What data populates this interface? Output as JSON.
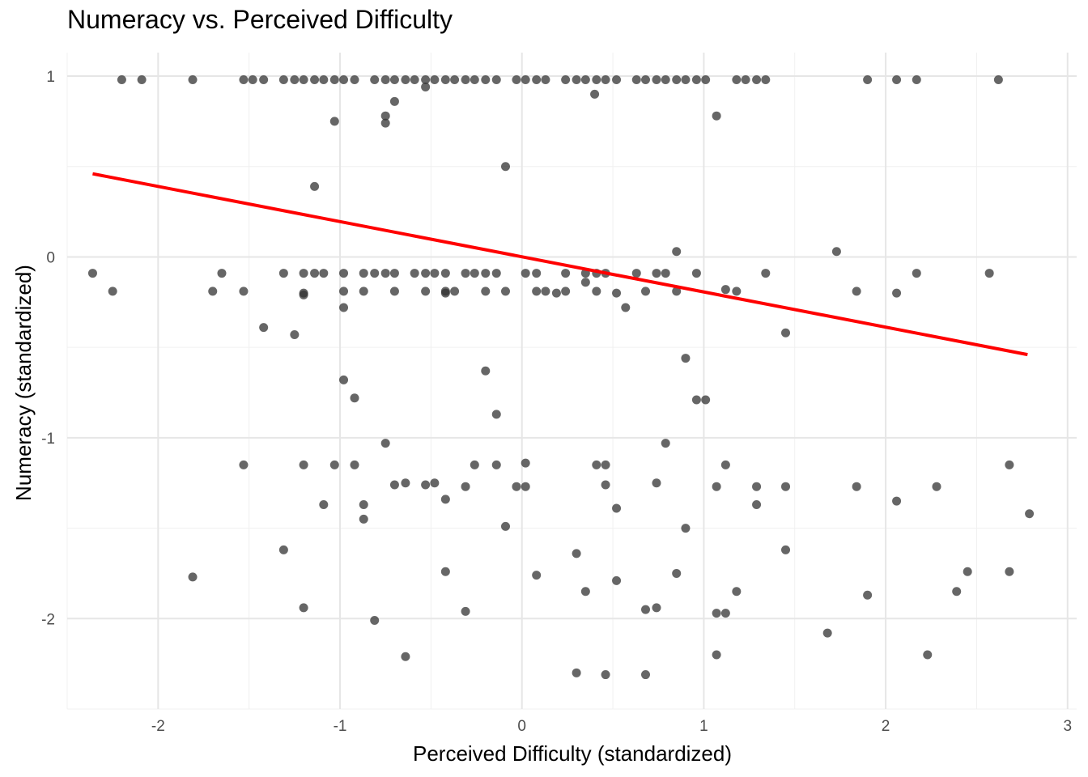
{
  "chart_data": {
    "type": "scatter",
    "title": "Numeracy vs. Perceived Difficulty",
    "xlabel": "Perceived Difficulty (standardized)",
    "ylabel": "Numeracy (standardized)",
    "xlim": [
      -2.5,
      3.05
    ],
    "ylim": [
      -2.5,
      1.13
    ],
    "x_ticks": [
      -2,
      -1,
      0,
      1,
      2,
      3
    ],
    "y_ticks": [
      -2,
      -1,
      0,
      1
    ],
    "grid": true,
    "point_color": "#333333",
    "fit_line": {
      "color": "#ff0000",
      "x": [
        -2.36,
        2.78
      ],
      "y": [
        0.46,
        -0.54
      ]
    },
    "points": [
      {
        "x": -2.2,
        "y": 0.98
      },
      {
        "x": -2.09,
        "y": 0.98
      },
      {
        "x": -1.81,
        "y": 0.98
      },
      {
        "x": -1.53,
        "y": 0.98
      },
      {
        "x": -1.48,
        "y": 0.98
      },
      {
        "x": -1.42,
        "y": 0.98
      },
      {
        "x": -1.31,
        "y": 0.98
      },
      {
        "x": -1.25,
        "y": 0.98
      },
      {
        "x": -1.2,
        "y": 0.98
      },
      {
        "x": -1.14,
        "y": 0.98
      },
      {
        "x": -1.09,
        "y": 0.98
      },
      {
        "x": -1.03,
        "y": 0.98
      },
      {
        "x": -0.98,
        "y": 0.98
      },
      {
        "x": -0.92,
        "y": 0.98
      },
      {
        "x": -0.81,
        "y": 0.98
      },
      {
        "x": -0.75,
        "y": 0.98
      },
      {
        "x": -0.7,
        "y": 0.98
      },
      {
        "x": -0.64,
        "y": 0.98
      },
      {
        "x": -0.59,
        "y": 0.98
      },
      {
        "x": -0.53,
        "y": 0.98
      },
      {
        "x": -0.48,
        "y": 0.98
      },
      {
        "x": -0.42,
        "y": 0.98
      },
      {
        "x": -0.37,
        "y": 0.98
      },
      {
        "x": -0.31,
        "y": 0.98
      },
      {
        "x": -0.26,
        "y": 0.98
      },
      {
        "x": -0.2,
        "y": 0.98
      },
      {
        "x": -0.14,
        "y": 0.98
      },
      {
        "x": -0.03,
        "y": 0.98
      },
      {
        "x": 0.02,
        "y": 0.98
      },
      {
        "x": 0.08,
        "y": 0.98
      },
      {
        "x": 0.13,
        "y": 0.98
      },
      {
        "x": 0.24,
        "y": 0.98
      },
      {
        "x": 0.3,
        "y": 0.98
      },
      {
        "x": 0.35,
        "y": 0.98
      },
      {
        "x": 0.41,
        "y": 0.98
      },
      {
        "x": 0.46,
        "y": 0.98
      },
      {
        "x": 0.52,
        "y": 0.98
      },
      {
        "x": 0.63,
        "y": 0.98
      },
      {
        "x": 0.68,
        "y": 0.98
      },
      {
        "x": 0.74,
        "y": 0.98
      },
      {
        "x": 0.79,
        "y": 0.98
      },
      {
        "x": 0.85,
        "y": 0.98
      },
      {
        "x": 0.9,
        "y": 0.98
      },
      {
        "x": 0.96,
        "y": 0.98
      },
      {
        "x": 1.01,
        "y": 0.98
      },
      {
        "x": 1.18,
        "y": 0.98
      },
      {
        "x": 1.23,
        "y": 0.98
      },
      {
        "x": 1.29,
        "y": 0.98
      },
      {
        "x": 1.34,
        "y": 0.98
      },
      {
        "x": 1.9,
        "y": 0.98
      },
      {
        "x": 2.06,
        "y": 0.98
      },
      {
        "x": 2.17,
        "y": 0.98
      },
      {
        "x": 2.62,
        "y": 0.98
      },
      {
        "x": 0.4,
        "y": 0.9
      },
      {
        "x": -0.7,
        "y": 0.86
      },
      {
        "x": -0.75,
        "y": 0.78
      },
      {
        "x": -0.75,
        "y": 0.74
      },
      {
        "x": -0.53,
        "y": 0.94
      },
      {
        "x": -1.03,
        "y": 0.75
      },
      {
        "x": 1.07,
        "y": 0.78
      },
      {
        "x": -0.09,
        "y": 0.5
      },
      {
        "x": -1.14,
        "y": 0.39
      },
      {
        "x": -2.36,
        "y": -0.09
      },
      {
        "x": -1.65,
        "y": -0.09
      },
      {
        "x": -1.31,
        "y": -0.09
      },
      {
        "x": -1.2,
        "y": -0.09
      },
      {
        "x": -1.14,
        "y": -0.09
      },
      {
        "x": -1.09,
        "y": -0.09
      },
      {
        "x": -0.98,
        "y": -0.09
      },
      {
        "x": -0.87,
        "y": -0.09
      },
      {
        "x": -0.81,
        "y": -0.09
      },
      {
        "x": -0.75,
        "y": -0.09
      },
      {
        "x": -0.7,
        "y": -0.09
      },
      {
        "x": -0.59,
        "y": -0.09
      },
      {
        "x": -0.53,
        "y": -0.09
      },
      {
        "x": -0.48,
        "y": -0.09
      },
      {
        "x": -0.42,
        "y": -0.09
      },
      {
        "x": -0.31,
        "y": -0.09
      },
      {
        "x": -0.26,
        "y": -0.09
      },
      {
        "x": -0.2,
        "y": -0.09
      },
      {
        "x": -0.14,
        "y": -0.09
      },
      {
        "x": 0.02,
        "y": -0.09
      },
      {
        "x": 0.08,
        "y": -0.09
      },
      {
        "x": 0.24,
        "y": -0.09
      },
      {
        "x": 0.35,
        "y": -0.09
      },
      {
        "x": 0.41,
        "y": -0.09
      },
      {
        "x": 0.46,
        "y": -0.09
      },
      {
        "x": 0.63,
        "y": -0.09
      },
      {
        "x": 0.74,
        "y": -0.09
      },
      {
        "x": 0.79,
        "y": -0.09
      },
      {
        "x": 0.96,
        "y": -0.09
      },
      {
        "x": 1.34,
        "y": -0.09
      },
      {
        "x": 2.17,
        "y": -0.09
      },
      {
        "x": 2.57,
        "y": -0.09
      },
      {
        "x": 0.85,
        "y": 0.03
      },
      {
        "x": 1.73,
        "y": 0.03
      },
      {
        "x": -2.25,
        "y": -0.19
      },
      {
        "x": -1.7,
        "y": -0.19
      },
      {
        "x": -1.53,
        "y": -0.19
      },
      {
        "x": -1.2,
        "y": -0.2
      },
      {
        "x": -1.2,
        "y": -0.21
      },
      {
        "x": -0.98,
        "y": -0.19
      },
      {
        "x": -0.87,
        "y": -0.19
      },
      {
        "x": -0.7,
        "y": -0.19
      },
      {
        "x": -0.53,
        "y": -0.19
      },
      {
        "x": -0.42,
        "y": -0.19
      },
      {
        "x": -0.42,
        "y": -0.2
      },
      {
        "x": -0.37,
        "y": -0.19
      },
      {
        "x": -0.2,
        "y": -0.19
      },
      {
        "x": -0.09,
        "y": -0.19
      },
      {
        "x": 0.08,
        "y": -0.19
      },
      {
        "x": 0.13,
        "y": -0.19
      },
      {
        "x": 0.19,
        "y": -0.2
      },
      {
        "x": 0.24,
        "y": -0.19
      },
      {
        "x": 0.41,
        "y": -0.19
      },
      {
        "x": 0.52,
        "y": -0.2
      },
      {
        "x": 0.68,
        "y": -0.19
      },
      {
        "x": 0.85,
        "y": -0.19
      },
      {
        "x": 1.12,
        "y": -0.18
      },
      {
        "x": 1.18,
        "y": -0.19
      },
      {
        "x": 1.84,
        "y": -0.19
      },
      {
        "x": 2.06,
        "y": -0.2
      },
      {
        "x": -0.98,
        "y": -0.28
      },
      {
        "x": 0.35,
        "y": -0.14
      },
      {
        "x": 0.57,
        "y": -0.28
      },
      {
        "x": -1.42,
        "y": -0.39
      },
      {
        "x": -1.25,
        "y": -0.43
      },
      {
        "x": 1.45,
        "y": -0.42
      },
      {
        "x": 0.9,
        "y": -0.56
      },
      {
        "x": -0.2,
        "y": -0.63
      },
      {
        "x": -0.98,
        "y": -0.68
      },
      {
        "x": -0.92,
        "y": -0.78
      },
      {
        "x": 0.96,
        "y": -0.79
      },
      {
        "x": 1.01,
        "y": -0.79
      },
      {
        "x": -0.14,
        "y": -0.87
      },
      {
        "x": -0.75,
        "y": -1.03
      },
      {
        "x": 0.79,
        "y": -1.03
      },
      {
        "x": -1.53,
        "y": -1.15
      },
      {
        "x": -1.2,
        "y": -1.15
      },
      {
        "x": -1.03,
        "y": -1.15
      },
      {
        "x": -0.92,
        "y": -1.15
      },
      {
        "x": -0.26,
        "y": -1.15
      },
      {
        "x": -0.14,
        "y": -1.15
      },
      {
        "x": 0.02,
        "y": -1.14
      },
      {
        "x": 0.41,
        "y": -1.15
      },
      {
        "x": 0.46,
        "y": -1.15
      },
      {
        "x": 1.12,
        "y": -1.15
      },
      {
        "x": 2.68,
        "y": -1.15
      },
      {
        "x": -0.7,
        "y": -1.26
      },
      {
        "x": -0.64,
        "y": -1.25
      },
      {
        "x": -0.53,
        "y": -1.26
      },
      {
        "x": -0.48,
        "y": -1.25
      },
      {
        "x": -0.31,
        "y": -1.27
      },
      {
        "x": -0.03,
        "y": -1.27
      },
      {
        "x": 0.02,
        "y": -1.27
      },
      {
        "x": 0.46,
        "y": -1.26
      },
      {
        "x": 0.74,
        "y": -1.25
      },
      {
        "x": 1.07,
        "y": -1.27
      },
      {
        "x": 1.29,
        "y": -1.27
      },
      {
        "x": 1.45,
        "y": -1.27
      },
      {
        "x": 1.84,
        "y": -1.27
      },
      {
        "x": 2.28,
        "y": -1.27
      },
      {
        "x": -1.09,
        "y": -1.37
      },
      {
        "x": -0.87,
        "y": -1.37
      },
      {
        "x": -0.87,
        "y": -1.45
      },
      {
        "x": -0.42,
        "y": -1.34
      },
      {
        "x": 0.52,
        "y": -1.39
      },
      {
        "x": 1.29,
        "y": -1.37
      },
      {
        "x": 2.06,
        "y": -1.35
      },
      {
        "x": 2.79,
        "y": -1.42
      },
      {
        "x": -0.09,
        "y": -1.49
      },
      {
        "x": 0.9,
        "y": -1.5
      },
      {
        "x": -1.31,
        "y": -1.62
      },
      {
        "x": 1.45,
        "y": -1.62
      },
      {
        "x": 0.3,
        "y": -1.64
      },
      {
        "x": -1.81,
        "y": -1.77
      },
      {
        "x": -0.42,
        "y": -1.74
      },
      {
        "x": 0.08,
        "y": -1.76
      },
      {
        "x": 0.52,
        "y": -1.79
      },
      {
        "x": 0.85,
        "y": -1.75
      },
      {
        "x": 2.45,
        "y": -1.74
      },
      {
        "x": 2.68,
        "y": -1.74
      },
      {
        "x": 0.35,
        "y": -1.85
      },
      {
        "x": 1.18,
        "y": -1.85
      },
      {
        "x": 1.9,
        "y": -1.87
      },
      {
        "x": 2.39,
        "y": -1.85
      },
      {
        "x": -1.2,
        "y": -1.94
      },
      {
        "x": -0.31,
        "y": -1.96
      },
      {
        "x": 0.68,
        "y": -1.95
      },
      {
        "x": 0.74,
        "y": -1.94
      },
      {
        "x": 1.07,
        "y": -1.97
      },
      {
        "x": 1.12,
        "y": -1.97
      },
      {
        "x": -0.81,
        "y": -2.01
      },
      {
        "x": 1.68,
        "y": -2.08
      },
      {
        "x": -0.64,
        "y": -2.21
      },
      {
        "x": 1.07,
        "y": -2.2
      },
      {
        "x": 2.23,
        "y": -2.2
      },
      {
        "x": 0.3,
        "y": -2.3
      },
      {
        "x": 0.46,
        "y": -2.31
      },
      {
        "x": 0.68,
        "y": -2.31
      }
    ]
  }
}
